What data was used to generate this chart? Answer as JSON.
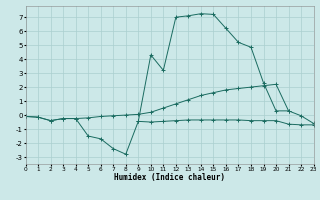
{
  "xlabel": "Humidex (Indice chaleur)",
  "bg_color": "#cce8e8",
  "grid_color": "#aacfcf",
  "line_color": "#1a6b60",
  "xlim": [
    0,
    23
  ],
  "ylim": [
    -3.5,
    7.8
  ],
  "xticks": [
    0,
    1,
    2,
    3,
    4,
    5,
    6,
    7,
    8,
    9,
    10,
    11,
    12,
    13,
    14,
    15,
    16,
    17,
    18,
    19,
    20,
    21,
    22,
    23
  ],
  "yticks": [
    -3,
    -2,
    -1,
    0,
    1,
    2,
    3,
    4,
    5,
    6,
    7
  ],
  "series1_x": [
    0,
    1,
    2,
    3,
    4,
    5,
    6,
    7,
    8,
    9,
    10,
    11,
    12,
    13,
    14,
    15,
    16,
    17,
    18,
    19,
    20,
    21,
    22,
    23
  ],
  "series1_y": [
    -0.1,
    -0.15,
    -0.4,
    -0.25,
    -0.25,
    -0.2,
    -0.1,
    -0.05,
    0.0,
    0.05,
    0.2,
    0.5,
    0.8,
    1.1,
    1.4,
    1.6,
    1.8,
    1.9,
    2.0,
    2.1,
    2.2,
    0.3,
    -0.05,
    -0.6
  ],
  "series2_x": [
    0,
    1,
    2,
    3,
    4,
    5,
    6,
    7,
    8,
    9,
    10,
    11,
    12,
    13,
    14,
    15,
    16,
    17,
    18,
    19,
    20,
    21,
    22,
    23
  ],
  "series2_y": [
    -0.1,
    -0.15,
    -0.4,
    -0.25,
    -0.25,
    -1.5,
    -1.7,
    -2.4,
    -2.8,
    -0.45,
    -0.5,
    -0.45,
    -0.4,
    -0.35,
    -0.35,
    -0.35,
    -0.35,
    -0.35,
    -0.4,
    -0.4,
    -0.4,
    -0.65,
    -0.7,
    -0.7
  ],
  "series3_x": [
    9,
    10,
    11,
    12,
    13,
    14,
    15,
    16,
    17,
    18,
    19,
    20,
    21
  ],
  "series3_y": [
    -0.45,
    4.3,
    3.2,
    7.0,
    7.1,
    7.25,
    7.2,
    6.2,
    5.2,
    4.85,
    2.3,
    0.3,
    0.3
  ]
}
